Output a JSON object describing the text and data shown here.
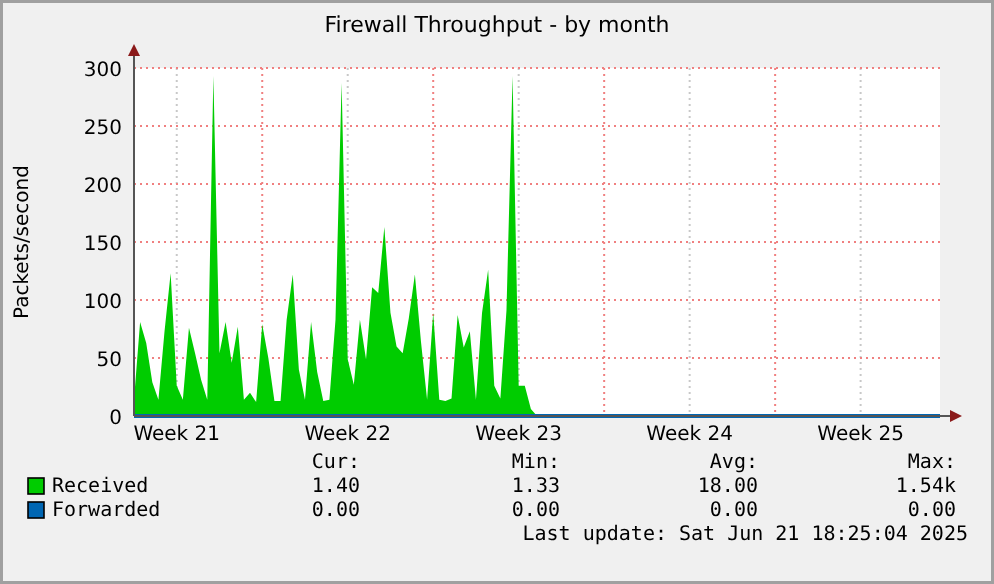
{
  "chart_data": {
    "type": "area",
    "title": "Firewall Throughput - by month",
    "ylabel": "Packets/second",
    "ylim": [
      0,
      300
    ],
    "yticks": [
      0,
      50,
      100,
      150,
      200,
      250,
      300
    ],
    "categories": [
      null,
      null,
      null,
      null,
      null,
      null,
      null,
      "Week 21",
      null,
      null,
      null,
      null,
      null,
      null,
      null,
      null,
      null,
      null,
      null,
      null,
      null,
      null,
      null,
      null,
      null,
      null,
      null,
      null,
      null,
      null,
      null,
      null,
      null,
      null,
      null,
      "Week 22",
      null,
      null,
      null,
      null,
      null,
      null,
      null,
      null,
      null,
      null,
      null,
      null,
      null,
      null,
      null,
      null,
      null,
      null,
      null,
      null,
      null,
      null,
      null,
      null,
      null,
      null,
      null,
      "Week 23",
      null,
      null,
      null,
      null,
      null,
      null,
      null,
      null,
      null,
      null,
      null,
      null,
      null,
      null,
      null,
      null,
      null,
      null,
      null,
      null,
      null,
      null,
      null,
      null,
      null,
      null,
      null,
      "Week 24",
      null,
      null,
      null,
      null,
      null,
      null,
      null,
      null,
      null,
      null,
      null,
      null,
      null,
      null,
      null,
      null,
      null,
      null,
      null,
      null,
      null,
      null,
      null,
      null,
      null,
      null,
      null,
      "Week 25",
      null,
      null,
      null,
      null,
      null,
      null,
      null,
      null,
      null,
      null,
      null,
      null,
      null
    ],
    "grid": true,
    "legend": "bottom",
    "series": [
      {
        "name": "Received",
        "color": "#00cc00",
        "values": [
          14,
          81,
          63,
          29,
          14,
          73,
          123,
          26,
          14,
          76,
          54,
          31,
          14,
          293,
          54,
          81,
          46,
          77,
          14,
          20,
          12,
          79,
          50,
          13,
          13,
          83,
          122,
          40,
          14,
          81,
          38,
          13,
          14,
          83,
          287,
          49,
          27,
          83,
          49,
          111,
          106,
          163,
          89,
          60,
          54,
          84,
          122,
          64,
          14,
          89,
          14,
          13,
          15,
          87,
          59,
          73,
          14,
          89,
          126,
          26,
          15,
          91,
          293,
          26,
          26,
          6,
          0,
          0,
          0,
          0,
          0,
          0,
          0,
          0,
          0,
          0,
          0,
          0,
          0,
          0,
          0,
          0,
          0,
          0,
          0,
          0,
          0,
          0,
          0,
          0,
          0,
          0,
          0,
          0,
          0,
          0,
          0,
          0,
          0,
          0,
          0,
          0,
          0,
          0,
          0,
          0,
          0,
          0,
          0,
          0,
          0,
          0,
          0,
          0,
          0,
          0,
          0,
          0,
          0,
          0,
          0,
          0,
          0,
          0,
          0,
          0,
          1,
          0,
          0,
          0,
          0,
          0,
          0
        ]
      },
      {
        "name": "Forwarded",
        "color": "#0066b3",
        "type": "line",
        "values": [
          0,
          0,
          0,
          0,
          0,
          0,
          0,
          0,
          0,
          0,
          0,
          0,
          0,
          0,
          0,
          0,
          0,
          0,
          0,
          0,
          0,
          0,
          0,
          0,
          0,
          0,
          0,
          0,
          0,
          0,
          0,
          0,
          0,
          0,
          0,
          0,
          0,
          0,
          0,
          0,
          0,
          0,
          0,
          0,
          0,
          0,
          0,
          0,
          0,
          0,
          0,
          0,
          0,
          0,
          0,
          0,
          0,
          0,
          0,
          0,
          0,
          0,
          0,
          0,
          0,
          0,
          0,
          0,
          0,
          0,
          0,
          0,
          0,
          0,
          0,
          0,
          0,
          0,
          0,
          0,
          0,
          0,
          0,
          0,
          0,
          0,
          0,
          0,
          0,
          0,
          0,
          0,
          0,
          0,
          0,
          0,
          0,
          0,
          0,
          0,
          0,
          0,
          0,
          0,
          0,
          0,
          0,
          0,
          0,
          0,
          0,
          0,
          0,
          0,
          0,
          0,
          0,
          0,
          0,
          0,
          0,
          0,
          0,
          0,
          0,
          0,
          0,
          0,
          0,
          0,
          0,
          0,
          0
        ]
      }
    ],
    "annotations": [
      "Cur:",
      "Min:",
      "Avg:",
      "Max:",
      "1.40",
      "1.33",
      "18.00",
      "1.54k",
      "0.00",
      "0.00",
      "0.00",
      "0.00",
      "Last update: Sat Jun 21 18:25:04 2025"
    ]
  }
}
